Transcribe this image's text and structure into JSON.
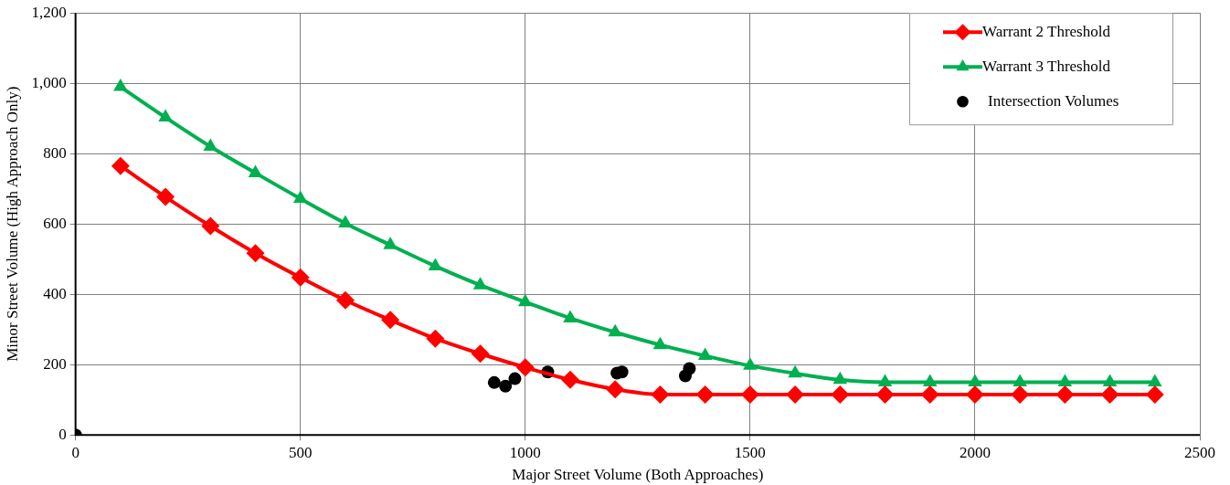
{
  "chart_data": {
    "type": "line",
    "xlabel": "Major Street Volume (Both Approaches)",
    "ylabel": "Minor Street Volume (High Approach Only)",
    "xlim": [
      0,
      2500
    ],
    "xticks": [
      0,
      500,
      1000,
      1500,
      2000,
      2500
    ],
    "ylim": [
      0,
      1200
    ],
    "yticks": [
      0,
      {
        "value": 200,
        "label": "200"
      },
      {
        "value": 400,
        "label": "400"
      },
      {
        "value": 600,
        "label": "600"
      },
      {
        "value": 800,
        "label": "800"
      },
      {
        "value": 1000,
        "label": "1,000"
      },
      {
        "value": 1200,
        "label": "1,200"
      }
    ],
    "grid": true,
    "legend": "top right",
    "line_style": "solid",
    "series": [
      {
        "name": "Warrant 2 Threshold",
        "marker": "diamond",
        "color": "#ff0000",
        "x": [
          100,
          200,
          300,
          400,
          500,
          600,
          700,
          800,
          900,
          1000,
          1100,
          1200,
          1300,
          1400,
          1500,
          1600,
          1700,
          1800,
          1900,
          2000,
          2100,
          2200,
          2300,
          2400
        ],
        "values": [
          765,
          677,
          594,
          517,
          448,
          383,
          327,
          274,
          231,
          192,
          157,
          130,
          115,
          115,
          115,
          115,
          115,
          115,
          115,
          115,
          115,
          115,
          115,
          115
        ]
      },
      {
        "name": "Warrant 3 Threshold",
        "marker": "triangle",
        "color": "#00b050",
        "x": [
          100,
          200,
          300,
          400,
          500,
          600,
          700,
          800,
          900,
          1000,
          1100,
          1200,
          1300,
          1400,
          1500,
          1600,
          1700,
          1800,
          1900,
          2000,
          2100,
          2200,
          2300,
          2400
        ],
        "values": [
          990,
          903,
          820,
          745,
          672,
          602,
          540,
          480,
          426,
          378,
          332,
          292,
          256,
          225,
          197,
          175,
          157,
          150,
          150,
          150,
          150,
          150,
          150,
          150
        ]
      },
      {
        "name": "Intersection Volumes",
        "type": "scatter",
        "marker": "circle",
        "color": "#000000",
        "x": [
          0,
          931,
          956,
          977,
          1050,
          1204,
          1215,
          1356,
          1365
        ],
        "values": [
          0,
          149,
          139,
          160,
          179,
          176,
          179,
          168,
          189
        ]
      }
    ]
  }
}
